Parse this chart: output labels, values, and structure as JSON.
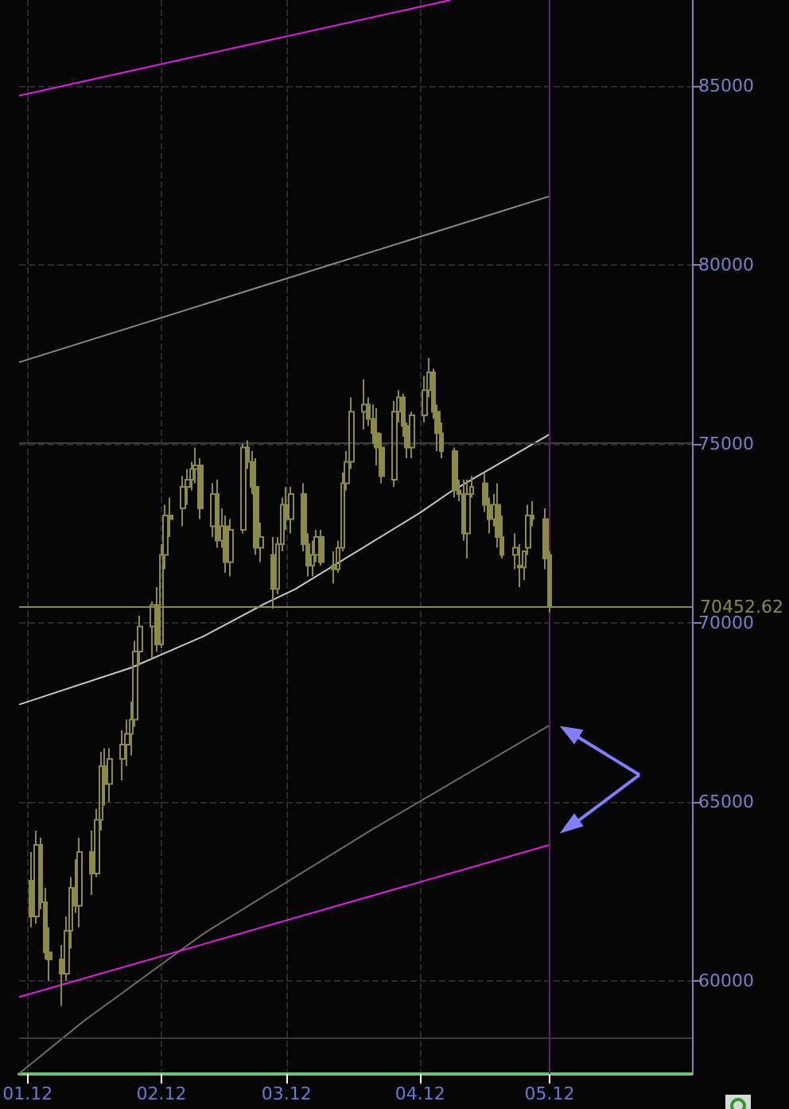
{
  "chart_data": {
    "type": "candlestick",
    "color": "#8c8a48",
    "x": [
      "2012-01-02",
      "2012-01-03",
      "2012-01-04",
      "2012-01-05",
      "2012-01-06",
      "2012-01-09",
      "2012-01-10",
      "2012-01-11",
      "2012-01-12",
      "2012-01-13",
      "2012-01-16",
      "2012-01-17",
      "2012-01-18",
      "2012-01-19",
      "2012-01-20",
      "2012-01-23",
      "2012-01-24",
      "2012-01-25",
      "2012-01-26",
      "2012-01-27",
      "2012-01-30",
      "2012-01-31",
      "2012-02-01",
      "2012-02-02",
      "2012-02-03",
      "2012-02-06",
      "2012-02-07",
      "2012-02-08",
      "2012-02-09",
      "2012-02-10",
      "2012-02-13",
      "2012-02-14",
      "2012-02-15",
      "2012-02-16",
      "2012-02-17",
      "2012-02-20",
      "2012-02-21",
      "2012-02-22",
      "2012-02-23",
      "2012-02-24",
      "2012-02-27",
      "2012-02-28",
      "2012-02-29",
      "2012-03-01",
      "2012-03-02",
      "2012-03-05",
      "2012-03-06",
      "2012-03-07",
      "2012-03-08",
      "2012-03-09",
      "2012-03-12",
      "2012-03-13",
      "2012-03-14",
      "2012-03-15",
      "2012-03-16",
      "2012-03-19",
      "2012-03-20",
      "2012-03-21",
      "2012-03-22",
      "2012-03-23",
      "2012-03-26",
      "2012-03-27",
      "2012-03-28",
      "2012-03-29",
      "2012-03-30",
      "2012-04-02",
      "2012-04-03",
      "2012-04-04",
      "2012-04-05",
      "2012-04-06",
      "2012-04-09",
      "2012-04-10",
      "2012-04-11",
      "2012-04-12",
      "2012-04-13",
      "2012-04-16",
      "2012-04-17",
      "2012-04-18",
      "2012-04-19",
      "2012-04-20",
      "2012-04-23",
      "2012-04-24",
      "2012-04-25",
      "2012-04-26",
      "2012-04-27",
      "2012-04-30",
      "2012-05-01"
    ],
    "ohlc": [
      [
        62800,
        63600,
        61500,
        61800
      ],
      [
        61800,
        64200,
        61600,
        63800
      ],
      [
        63800,
        64000,
        62000,
        62200
      ],
      [
        62200,
        62600,
        60600,
        60800
      ],
      [
        60800,
        61500,
        60000,
        60600
      ],
      [
        60600,
        61000,
        59300,
        60200
      ],
      [
        60200,
        61800,
        60000,
        61400
      ],
      [
        61400,
        62900,
        60900,
        62600
      ],
      [
        62600,
        63400,
        61900,
        62100
      ],
      [
        62100,
        64000,
        61500,
        63600
      ],
      [
        63600,
        64200,
        62400,
        63000
      ],
      [
        63000,
        64800,
        62900,
        64500
      ],
      [
        64500,
        66400,
        64200,
        66000
      ],
      [
        66000,
        66500,
        64900,
        65500
      ],
      [
        65500,
        66500,
        65000,
        66200
      ],
      [
        66200,
        67000,
        65600,
        66600
      ],
      [
        66600,
        67300,
        66000,
        66900
      ],
      [
        66900,
        67800,
        66300,
        67300
      ],
      [
        67300,
        69500,
        67100,
        69200
      ],
      [
        69200,
        70200,
        68800,
        69900
      ],
      [
        69900,
        70600,
        69000,
        70500
      ],
      [
        70500,
        71000,
        69200,
        69400
      ],
      [
        69400,
        72200,
        69300,
        71900
      ],
      [
        71900,
        73300,
        71500,
        73000
      ],
      [
        73000,
        73500,
        72400,
        72900
      ],
      [
        73200,
        74100,
        72700,
        73800
      ],
      [
        73800,
        74300,
        73300,
        74000
      ],
      [
        74000,
        74500,
        73700,
        74300
      ],
      [
        74300,
        74900,
        73900,
        74400
      ],
      [
        74400,
        74600,
        72900,
        73200
      ],
      [
        72700,
        73900,
        72400,
        73600
      ],
      [
        73600,
        74000,
        72100,
        72300
      ],
      [
        72300,
        73200,
        72100,
        72700
      ],
      [
        72700,
        73000,
        71400,
        71700
      ],
      [
        71700,
        72900,
        71300,
        72600
      ],
      [
        72600,
        75000,
        72500,
        74900
      ],
      [
        74900,
        75100,
        74300,
        74500
      ],
      [
        74500,
        74800,
        73600,
        73800
      ],
      [
        73800,
        74600,
        71900,
        72100
      ],
      [
        72100,
        72800,
        71700,
        72400
      ],
      [
        71900,
        72400,
        70400,
        70950
      ],
      [
        70950,
        72400,
        70800,
        72200
      ],
      [
        72200,
        73500,
        72000,
        73300
      ],
      [
        73300,
        73800,
        72600,
        72900
      ],
      [
        72900,
        73800,
        72500,
        73600
      ],
      [
        73600,
        73900,
        72000,
        72200
      ],
      [
        72200,
        72500,
        71300,
        71600
      ],
      [
        71600,
        72300,
        71300,
        71900
      ],
      [
        71900,
        72600,
        71700,
        72400
      ],
      [
        72400,
        72600,
        71600,
        71700
      ],
      [
        71600,
        72000,
        71100,
        71500
      ],
      [
        71500,
        72300,
        71400,
        72100
      ],
      [
        72100,
        74200,
        72000,
        73900
      ],
      [
        73900,
        74800,
        73700,
        74500
      ],
      [
        74500,
        76300,
        74300,
        75900
      ],
      [
        75900,
        76800,
        75400,
        76100
      ],
      [
        76100,
        76300,
        75500,
        75700
      ],
      [
        75700,
        76100,
        75000,
        75300
      ],
      [
        75300,
        76000,
        74400,
        74900
      ],
      [
        74900,
        75300,
        73900,
        74100
      ],
      [
        74000,
        76200,
        73800,
        75900
      ],
      [
        75900,
        76500,
        75600,
        76300
      ],
      [
        76300,
        76400,
        75200,
        75500
      ],
      [
        75500,
        75600,
        74600,
        74900
      ],
      [
        74900,
        75900,
        74600,
        75800
      ],
      [
        75800,
        76900,
        75600,
        76500
      ],
      [
        76500,
        77400,
        76300,
        77000
      ],
      [
        77000,
        77100,
        75700,
        75900
      ],
      [
        75900,
        76100,
        74800,
        75300
      ],
      [
        75300,
        75600,
        74600,
        74800
      ],
      [
        74800,
        74900,
        73500,
        73700
      ],
      [
        73700,
        74000,
        73400,
        73600
      ],
      [
        73600,
        74000,
        72300,
        72500
      ],
      [
        72500,
        74000,
        71800,
        73600
      ],
      [
        73600,
        74100,
        73500,
        73800
      ],
      [
        73900,
        74200,
        73100,
        73300
      ],
      [
        73300,
        73500,
        72500,
        72900
      ],
      [
        72900,
        73600,
        72700,
        73300
      ],
      [
        73300,
        73900,
        72100,
        72400
      ],
      [
        72400,
        73000,
        71800,
        71900
      ],
      [
        71900,
        72500,
        71500,
        72100
      ],
      [
        71600,
        72200,
        71000,
        71550
      ],
      [
        71550,
        72000,
        71200,
        72000
      ],
      [
        72100,
        73300,
        71900,
        73000
      ],
      [
        73000,
        73400,
        72700,
        72900
      ],
      [
        72900,
        73200,
        71500,
        71800
      ],
      [
        71900,
        72000,
        70300,
        70452.62
      ]
    ],
    "series": [
      {
        "type": "line",
        "color": "#e020e0",
        "x": [
          "2011-12-30",
          "2012-04-08"
        ],
        "values": [
          84730,
          87400
        ]
      },
      {
        "type": "line",
        "color": "#8a8a8a",
        "x": [
          "2011-12-30",
          "2012-05-01"
        ],
        "values": [
          77280,
          81920
        ]
      },
      {
        "type": "line",
        "color": "#c8c8c8",
        "x": [
          "2011-12-30",
          "2012-01-25",
          "2012-02-11",
          "2012-02-25",
          "2012-03-03",
          "2012-04-01",
          "2012-04-08",
          "2012-05-01"
        ],
        "values": [
          67720,
          68750,
          69640,
          70540,
          70940,
          73080,
          73660,
          75270
        ]
      },
      {
        "type": "line",
        "color": "#6a6a6a",
        "x": [
          "2011-12-30",
          "2012-01-14",
          "2012-02-11",
          "2012-03-21",
          "2012-05-01"
        ],
        "values": [
          57410,
          58880,
          61340,
          64240,
          67140
        ]
      },
      {
        "type": "line",
        "color": "#e020e0",
        "x": [
          "2011-12-30",
          "2012-05-01"
        ],
        "values": [
          59550,
          63800
        ]
      }
    ],
    "xlim": [
      "2011-12-30",
      "2012-06-03"
    ],
    "xticks": [
      {
        "value": "2012-01-01",
        "label": "01.12"
      },
      {
        "value": "2012-02-01",
        "label": "02.12"
      },
      {
        "value": "2012-03-01",
        "label": "03.12"
      },
      {
        "value": "2012-04-01",
        "label": "04.12"
      },
      {
        "value": "2012-05-01",
        "label": "05.12"
      }
    ],
    "ylim": [
      57400,
      87400
    ],
    "yticks": [
      60000,
      65000,
      70000,
      75000,
      80000,
      85000
    ],
    "grid": true,
    "ref_lines": [
      {
        "axis": "x",
        "value": "2012-05-01",
        "color": "#6a1a6a"
      },
      {
        "axis": "y",
        "value": 75030,
        "color": "#3c3c3c"
      },
      {
        "axis": "y",
        "value": 58420,
        "color": "#3c3c3c"
      },
      {
        "axis": "y",
        "value": 70452.62,
        "label": "70452.62",
        "color": "#8c8a48"
      }
    ]
  }
}
